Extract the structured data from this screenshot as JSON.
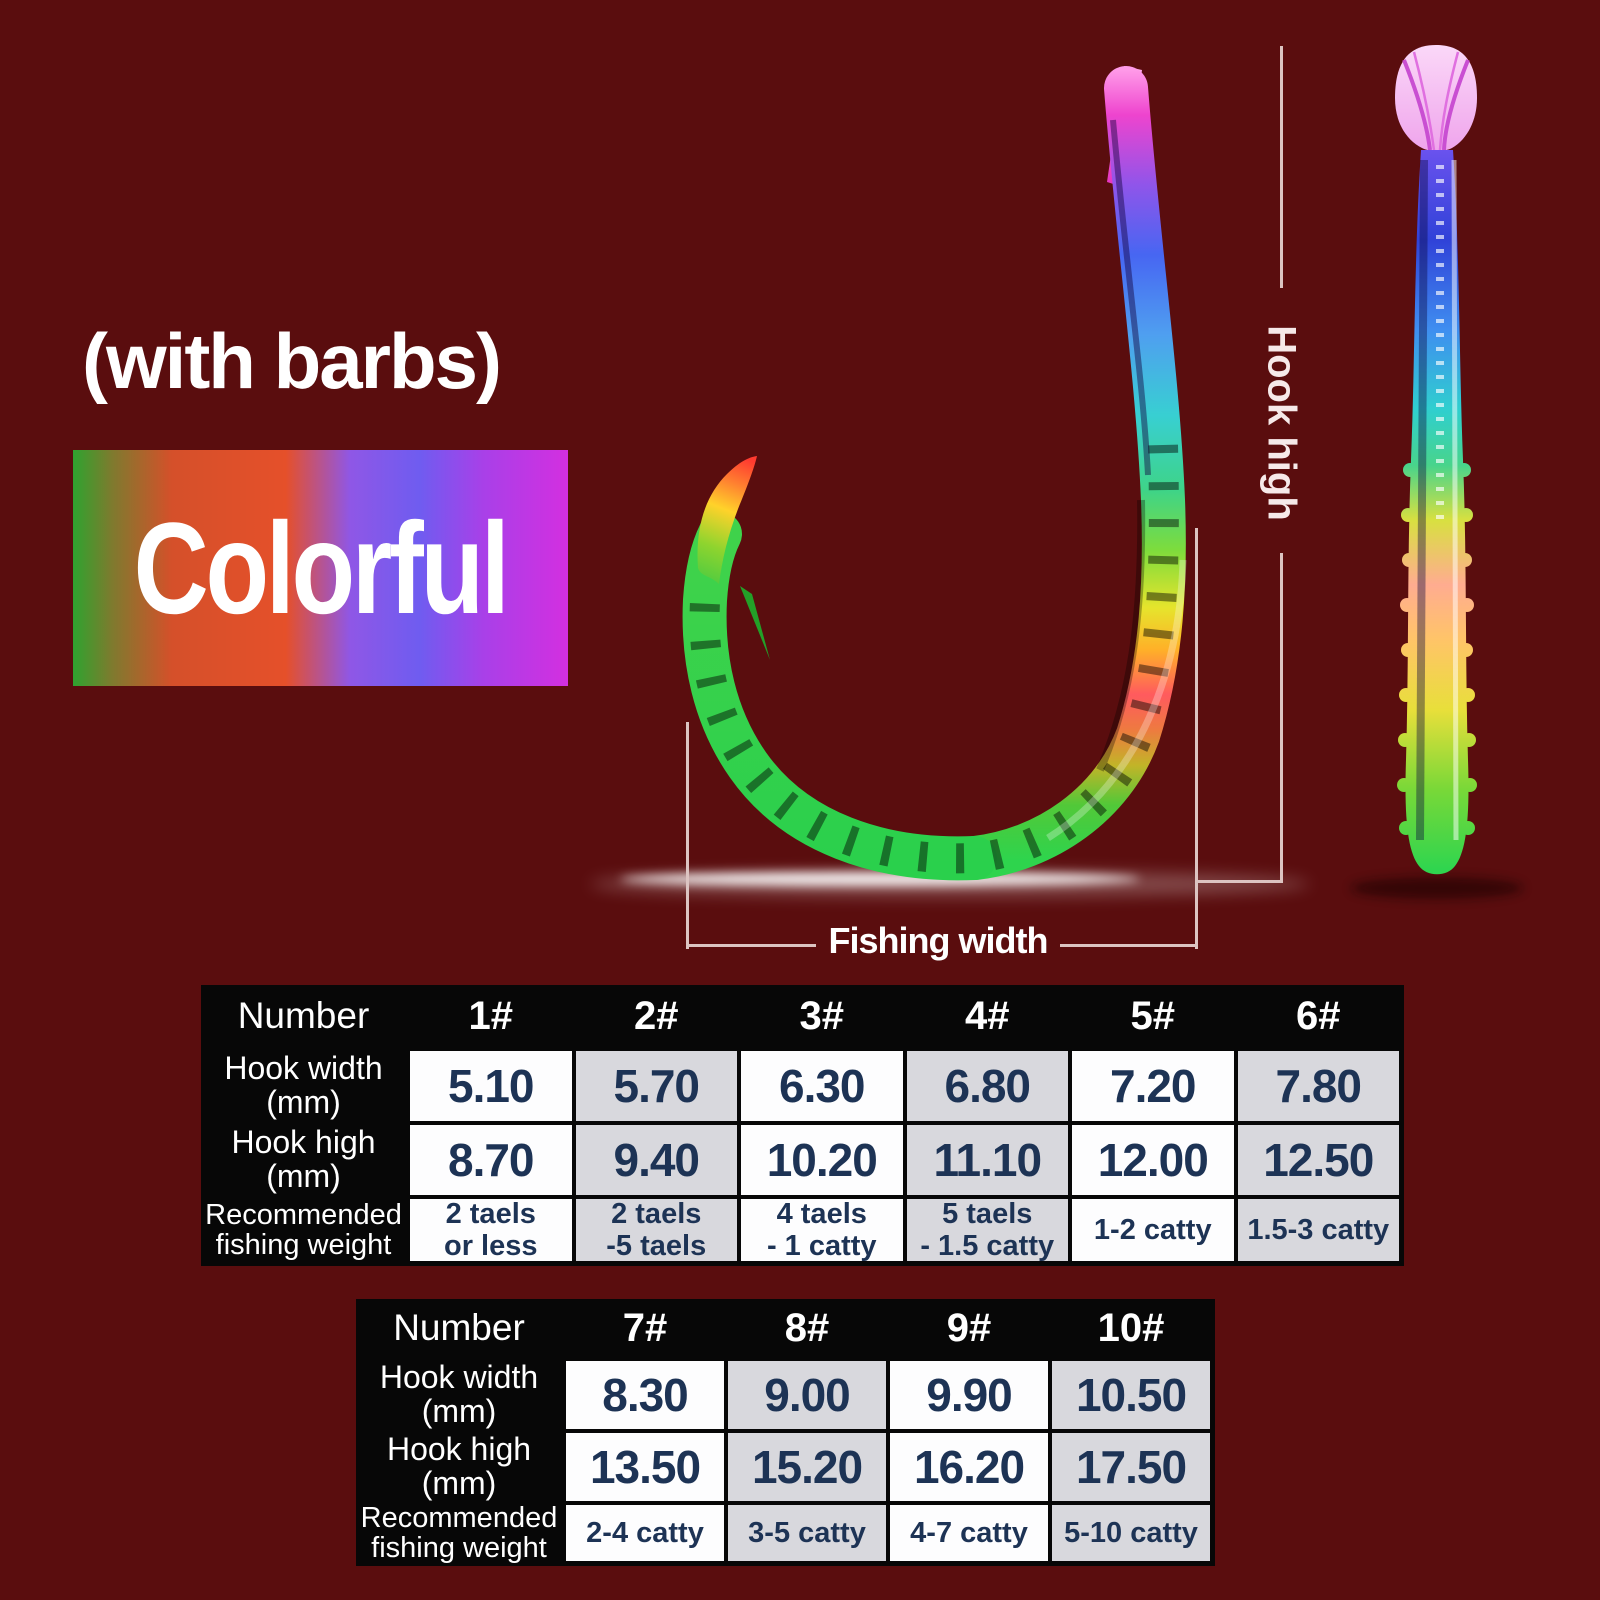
{
  "canvas": {
    "background_color": "#5a0d0e"
  },
  "overlay": {
    "with_barbs_caption": "(with barbs)",
    "colorful_badge": {
      "label": "Colorful",
      "gradient_colors": [
        "#2fa32f",
        "#e5502a",
        "#8f57e6",
        "#6f5cf0",
        "#d32fe0"
      ]
    }
  },
  "diagram": {
    "hook_high_label": "Hook high",
    "fishing_width_label": "Fishing width",
    "dimension_line_color": "#dcc4c2",
    "hook_views": [
      "main-hook-side-view",
      "hook-front-view"
    ]
  },
  "spec_tables": [
    {
      "row_headers": {
        "number": "Number",
        "hook_width": [
          "Hook width",
          "(mm)"
        ],
        "hook_high": [
          "Hook high",
          "(mm)"
        ],
        "weight": [
          "Recommended",
          "fishing weight"
        ]
      },
      "columns": [
        "1#",
        "2#",
        "3#",
        "4#",
        "5#",
        "6#"
      ],
      "hook_width_mm": [
        "5.10",
        "5.70",
        "6.30",
        "6.80",
        "7.20",
        "7.80"
      ],
      "hook_high_mm": [
        "8.70",
        "9.40",
        "10.20",
        "11.10",
        "12.00",
        "12.50"
      ],
      "recommended_weight": [
        [
          "2 taels",
          "or less"
        ],
        [
          "2 taels",
          "-5 taels"
        ],
        [
          "4 taels",
          "- 1 catty"
        ],
        [
          "5 taels",
          "- 1.5 catty"
        ],
        [
          "1-2 catty"
        ],
        [
          "1.5-3 catty"
        ]
      ]
    },
    {
      "row_headers": {
        "number": "Number",
        "hook_width": [
          "Hook width",
          "(mm)"
        ],
        "hook_high": [
          "Hook high",
          "(mm)"
        ],
        "weight": [
          "Recommended",
          "fishing weight"
        ]
      },
      "columns": [
        "7#",
        "8#",
        "9#",
        "10#"
      ],
      "hook_width_mm": [
        "8.30",
        "9.00",
        "9.90",
        "10.50"
      ],
      "hook_high_mm": [
        "13.50",
        "15.20",
        "16.20",
        "17.50"
      ],
      "recommended_weight": [
        [
          "2-4 catty"
        ],
        [
          "3-5 catty"
        ],
        [
          "4-7 catty"
        ],
        [
          "5-10 catty"
        ]
      ]
    }
  ],
  "table_style": {
    "header_text_color": "#ffffff",
    "value_text_color": "#1d3355",
    "cell_bg": "#fdfdfe",
    "cell_bg_alt": "#d8d8dd",
    "table_bg": "#070707"
  }
}
